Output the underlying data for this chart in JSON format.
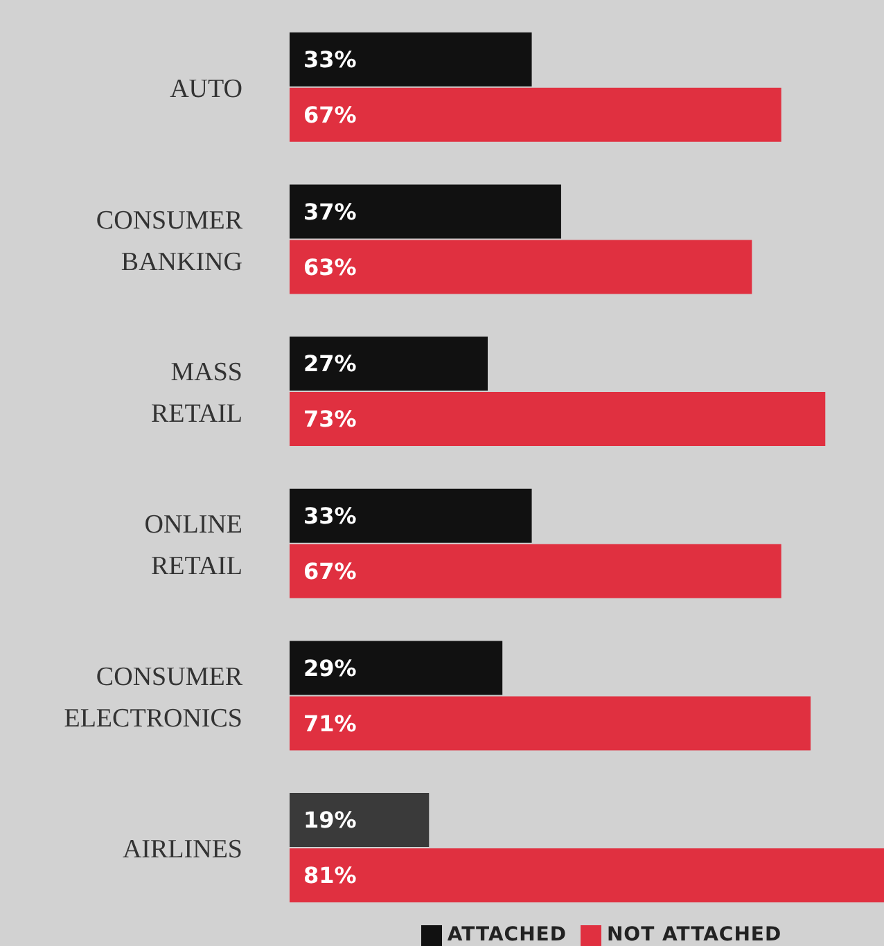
{
  "chart_data": {
    "type": "bar",
    "orientation": "horizontal",
    "categories": [
      "AUTO",
      "CONSUMER BANKING",
      "MASS RETAIL",
      "ONLINE RETAIL",
      "CONSUMER ELECTRONICS",
      "AIRLINES"
    ],
    "series": [
      {
        "name": "ATTACHED",
        "color": "#111111",
        "colors": [
          "#111111",
          "#111111",
          "#111111",
          "#111111",
          "#111111",
          "#3a3a3a"
        ],
        "values": [
          33,
          37,
          27,
          33,
          29,
          19
        ],
        "value_labels": [
          "33%",
          "37%",
          "27%",
          "33%",
          "29%",
          "19%"
        ]
      },
      {
        "name": "NOT ATTACHED",
        "color": "#e03040",
        "values": [
          67,
          63,
          73,
          67,
          71,
          81
        ],
        "value_labels": [
          "67%",
          "63%",
          "73%",
          "67%",
          "71%",
          "81%"
        ]
      }
    ],
    "legend": "bottom",
    "grid": false
  }
}
